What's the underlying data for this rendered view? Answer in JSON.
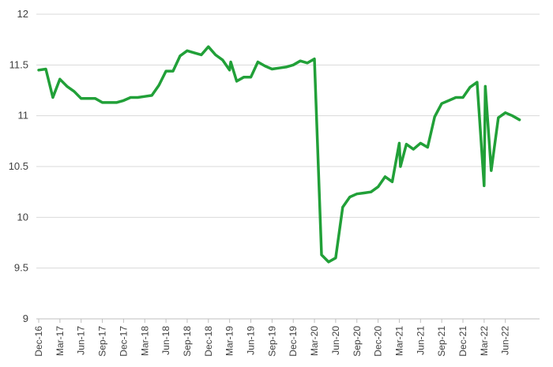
{
  "chart_data": {
    "type": "line",
    "title": "",
    "xlabel": "",
    "ylabel": "",
    "ylim": [
      9,
      12
    ],
    "yticks": [
      "9",
      "9.5",
      "10",
      "10.5",
      "11",
      "11.5",
      "12"
    ],
    "grid": true,
    "legend": "none",
    "line_color": "#21a038",
    "xtick_labels": [
      "Dec-16",
      "Mar-17",
      "Jun-17",
      "Sep-17",
      "Dec-17",
      "Mar-18",
      "Jun-18",
      "Sep-18",
      "Dec-18",
      "Mar-19",
      "Jun-19",
      "Sep-19",
      "Dec-19",
      "Mar-20",
      "Jun-20",
      "Sep-20",
      "Dec-20",
      "Mar-21",
      "Jun-21",
      "Sep-21",
      "Dec-21",
      "Mar-22",
      "Jun-22"
    ],
    "series": [
      {
        "x": [
          "Dec-16",
          "Jan-17",
          "Feb-17",
          "Mar-17",
          "Apr-17",
          "May-17",
          "Jun-17",
          "Jul-17",
          "Aug-17",
          "Sep-17",
          "Oct-17",
          "Nov-17",
          "Dec-17",
          "Jan-18",
          "Feb-18",
          "Mar-18",
          "Apr-18",
          "May-18",
          "Jun-18",
          "Jul-18",
          "Aug-18",
          "Sep-18",
          "Oct-18",
          "Nov-18",
          "Dec-18",
          "Jan-19",
          "Feb-19",
          "Mar-19",
          "Mar-19",
          "Apr-19",
          "May-19",
          "Jun-19",
          "Jul-19",
          "Aug-19",
          "Sep-19",
          "Oct-19",
          "Nov-19",
          "Dec-19",
          "Jan-20",
          "Feb-20",
          "Mar-20",
          "Apr-20",
          "May-20",
          "Jun-20",
          "Jul-20",
          "Aug-20",
          "Sep-20",
          "Oct-20",
          "Nov-20",
          "Dec-20",
          "Jan-21",
          "Feb-21",
          "Mar-21",
          "Mar-21",
          "Apr-21",
          "May-21",
          "Jun-21",
          "Jul-21",
          "Aug-21",
          "Sep-21",
          "Oct-21",
          "Nov-21",
          "Dec-21",
          "Jan-22",
          "Feb-22",
          "Mar-22",
          "Mar-22",
          "Apr-22",
          "May-22",
          "Jun-22",
          "Jul-22",
          "Aug-22"
        ],
        "values": [
          11.45,
          11.46,
          11.18,
          11.36,
          11.29,
          11.24,
          11.17,
          11.17,
          11.17,
          11.13,
          11.13,
          11.13,
          11.15,
          11.18,
          11.18,
          11.19,
          11.2,
          11.3,
          11.44,
          11.44,
          11.59,
          11.64,
          11.62,
          11.6,
          11.68,
          11.6,
          11.55,
          11.45,
          11.53,
          11.34,
          11.38,
          11.38,
          11.53,
          11.49,
          11.46,
          11.47,
          11.48,
          11.5,
          11.54,
          11.52,
          11.56,
          9.63,
          9.56,
          9.6,
          10.1,
          10.2,
          10.23,
          10.24,
          10.25,
          10.3,
          10.4,
          10.35,
          10.73,
          10.5,
          10.72,
          10.67,
          10.73,
          10.69,
          10.99,
          11.12,
          11.15,
          11.18,
          11.18,
          11.28,
          11.33,
          10.31,
          11.29,
          10.46,
          10.98,
          11.03,
          11.0,
          10.96
        ]
      }
    ]
  }
}
